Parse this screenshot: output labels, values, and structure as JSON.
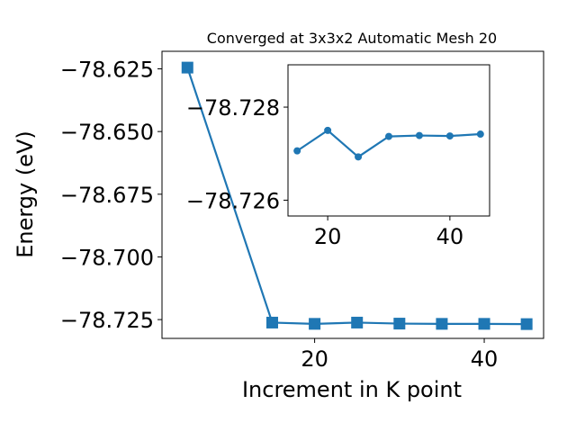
{
  "chart_data": [
    {
      "type": "line",
      "title": "Converged at 3x3x2 Automatic Mesh 20",
      "xlabel": "Increment in K point",
      "ylabel": "Energy (eV)",
      "xlim": [
        2,
        47
      ],
      "ylim": [
        -78.7325,
        -78.618
      ],
      "xticks": [
        20,
        40
      ],
      "xtick_labels": [
        "20",
        "40"
      ],
      "yticks": [
        -78.625,
        -78.65,
        -78.675,
        -78.7,
        -78.725
      ],
      "ytick_labels": [
        "−78.625",
        "−78.650",
        "−78.675",
        "−78.700",
        "−78.725"
      ],
      "grid": false,
      "marker": "square",
      "color": "#1f77b4",
      "series": [
        {
          "x": [
            5,
            15,
            20,
            25,
            30,
            35,
            40,
            45
          ],
          "values": [
            -78.6245,
            -78.7262,
            -78.7267,
            -78.7262,
            -78.7266,
            -78.7267,
            -78.7267,
            -78.7268
          ]
        }
      ]
    },
    {
      "type": "line",
      "title": "",
      "xlabel": "",
      "ylabel": "",
      "xlim": [
        13.5,
        46.5
      ],
      "ylim": [
        -78.72566,
        -78.72891
      ],
      "xticks": [
        20,
        40
      ],
      "xtick_labels": [
        "20",
        "40"
      ],
      "yticks": [
        -78.728,
        -78.726
      ],
      "ytick_labels": [
        "−78.728",
        "−78.726"
      ],
      "grid": false,
      "marker": "circle",
      "color": "#1f77b4",
      "series": [
        {
          "x": [
            15,
            20,
            25,
            30,
            35,
            40,
            45
          ],
          "values": [
            -78.72706,
            -78.7275,
            -78.72693,
            -78.72737,
            -78.72739,
            -78.72738,
            -78.72742
          ]
        }
      ]
    }
  ]
}
